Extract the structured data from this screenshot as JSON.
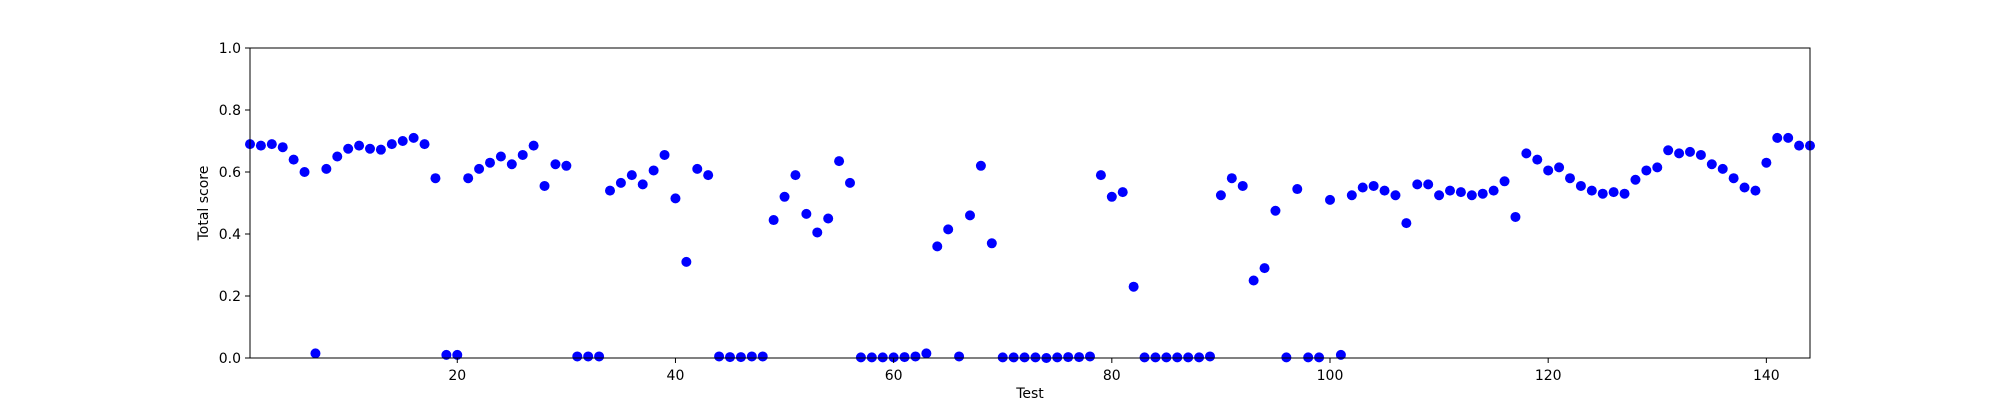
{
  "chart_data": {
    "type": "scatter",
    "title": "",
    "xlabel": "Test",
    "ylabel": "Total score",
    "xlim": [
      1,
      144
    ],
    "ylim": [
      0.0,
      1.0
    ],
    "xticks": [
      20,
      40,
      60,
      80,
      100,
      120,
      140
    ],
    "yticks": [
      0.0,
      0.2,
      0.4,
      0.6,
      0.8,
      1.0
    ],
    "xtick_labels": [
      "20",
      "40",
      "60",
      "80",
      "100",
      "120",
      "140"
    ],
    "ytick_labels": [
      "0.0",
      "0.2",
      "0.4",
      "0.6",
      "0.8",
      "1.0"
    ],
    "grid": false,
    "marker_color": "#0000ff",
    "series": [
      {
        "x": [
          1,
          2,
          3,
          4,
          5,
          6,
          7,
          8,
          9,
          10,
          11,
          12,
          13,
          14,
          15,
          16,
          17,
          18,
          19,
          20,
          21,
          22,
          23,
          24,
          25,
          26,
          27,
          28,
          29,
          30,
          31,
          32,
          33,
          34,
          35,
          36,
          37,
          38,
          39,
          40,
          41,
          42,
          43,
          44,
          45,
          46,
          47,
          48,
          49,
          50,
          51,
          52,
          53,
          54,
          55,
          56,
          57,
          58,
          59,
          60,
          61,
          62,
          63,
          64,
          65,
          66,
          67,
          68,
          69,
          70,
          71,
          72,
          73,
          74,
          75,
          76,
          77,
          78,
          79,
          80,
          81,
          82,
          83,
          84,
          85,
          86,
          87,
          88,
          89,
          90,
          91,
          92,
          93,
          94,
          95,
          96,
          97,
          98,
          99,
          100,
          101,
          102,
          103,
          104,
          105,
          106,
          107,
          108,
          109,
          110,
          111,
          112,
          113,
          114,
          115,
          116,
          117,
          118,
          119,
          120,
          121,
          122,
          123,
          124,
          125,
          126,
          127,
          128,
          129,
          130,
          131,
          132,
          133,
          134,
          135,
          136,
          137,
          138,
          139,
          140,
          141,
          142,
          143,
          144
        ],
        "y": [
          0.69,
          0.685,
          0.69,
          0.68,
          0.64,
          0.6,
          0.015,
          0.61,
          0.65,
          0.675,
          0.685,
          0.675,
          0.672,
          0.69,
          0.7,
          0.71,
          0.69,
          0.58,
          0.01,
          0.01,
          0.58,
          0.61,
          0.63,
          0.65,
          0.625,
          0.655,
          0.685,
          0.555,
          0.625,
          0.62,
          0.005,
          0.005,
          0.005,
          0.54,
          0.565,
          0.59,
          0.56,
          0.605,
          0.655,
          0.515,
          0.31,
          0.61,
          0.59,
          0.005,
          0.003,
          0.003,
          0.005,
          0.005,
          0.445,
          0.52,
          0.59,
          0.465,
          0.405,
          0.45,
          0.635,
          0.565,
          0.002,
          0.002,
          0.002,
          0.002,
          0.003,
          0.005,
          0.015,
          0.36,
          0.415,
          0.005,
          0.46,
          0.62,
          0.37,
          0.002,
          0.002,
          0.002,
          0.002,
          0.0,
          0.002,
          0.003,
          0.003,
          0.005,
          0.59,
          0.52,
          0.535,
          0.23,
          0.002,
          0.002,
          0.002,
          0.002,
          0.002,
          0.002,
          0.005,
          0.525,
          0.58,
          0.555,
          0.25,
          0.29,
          0.475,
          0.002,
          0.545,
          0.002,
          0.002,
          0.51,
          0.01,
          0.525,
          0.55,
          0.555,
          0.54,
          0.525,
          0.435,
          0.56,
          0.56,
          0.525,
          0.54,
          0.535,
          0.525,
          0.53,
          0.54,
          0.57,
          0.455,
          0.66,
          0.64,
          0.605,
          0.615,
          0.58,
          0.555,
          0.54,
          0.53,
          0.535,
          0.53,
          0.575,
          0.605,
          0.615,
          0.67,
          0.66,
          0.665,
          0.655,
          0.625,
          0.61,
          0.58,
          0.55,
          0.54,
          0.63,
          0.71,
          0.71,
          0.685,
          0.685
        ]
      }
    ]
  }
}
